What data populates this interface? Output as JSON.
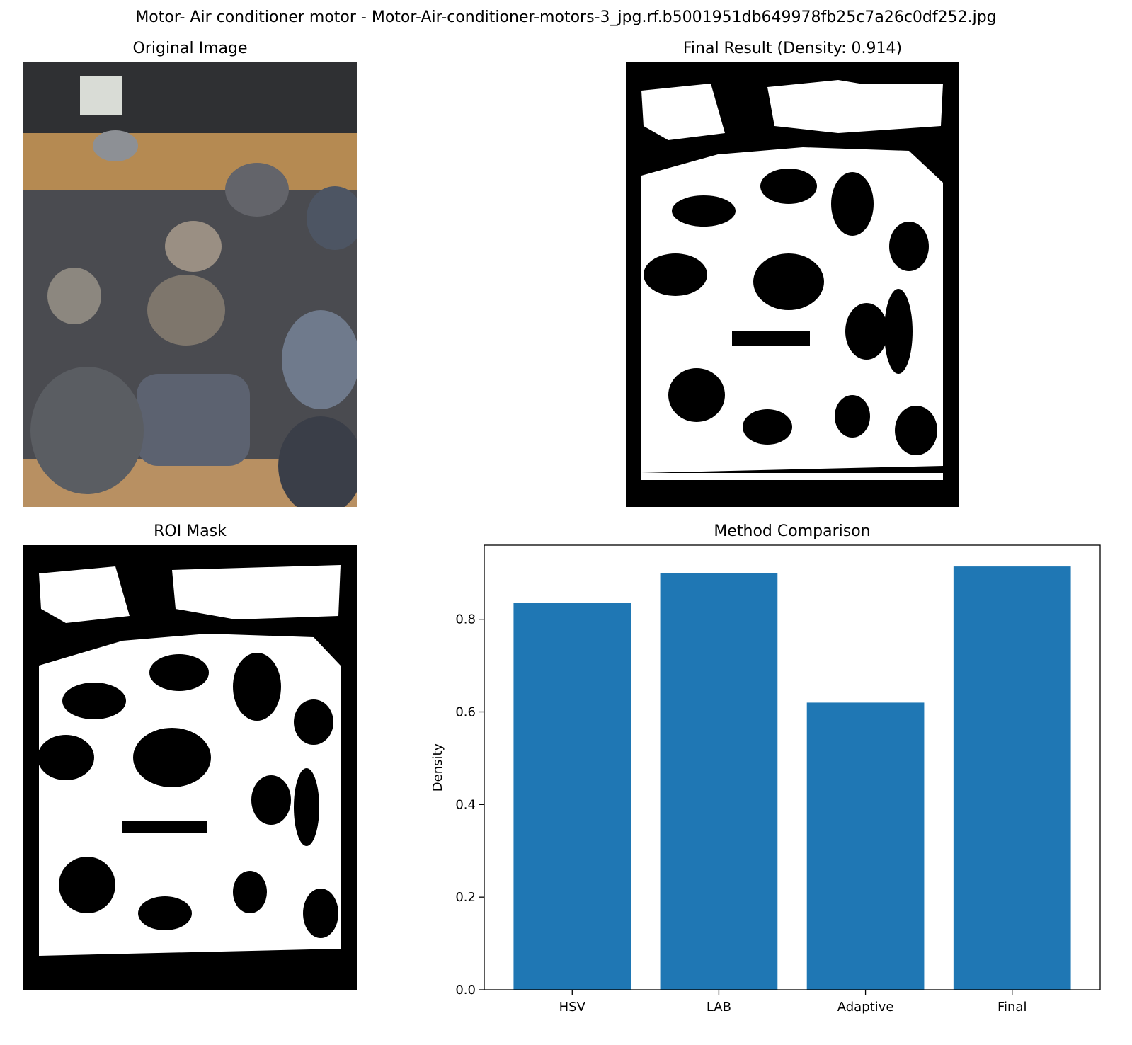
{
  "figure": {
    "suptitle": "Motor- Air conditioner motor - Motor-Air-conditioner-motors-3_jpg.rf.b5001951db649978fb25c7a26c0df252.jpg"
  },
  "panels": {
    "original": {
      "title": "Original Image"
    },
    "final": {
      "title": "Final Result (Density: 0.914)"
    },
    "roi": {
      "title": "ROI Mask"
    },
    "comparison": {
      "title": "Method Comparison"
    }
  },
  "colors": {
    "bar": "#1f77b4",
    "axis": "#000000",
    "mask_fg": "#ffffff",
    "mask_bg": "#000000"
  },
  "chart_data": {
    "type": "bar",
    "title": "Method Comparison",
    "xlabel": "",
    "ylabel": "Density",
    "categories": [
      "HSV",
      "LAB",
      "Adaptive",
      "Final"
    ],
    "values": [
      0.835,
      0.9,
      0.62,
      0.914
    ],
    "ylim": [
      0,
      0.96
    ],
    "yticks": [
      0.0,
      0.2,
      0.4,
      0.6,
      0.8
    ],
    "ytick_labels": [
      "0.0",
      "0.2",
      "0.4",
      "0.6",
      "0.8"
    ],
    "grid": false
  }
}
